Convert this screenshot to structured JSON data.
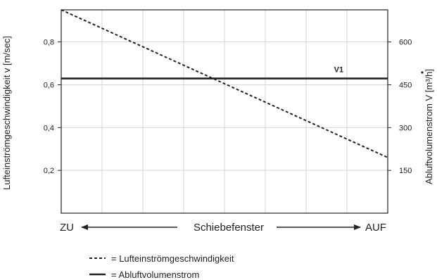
{
  "chart_data": {
    "type": "line",
    "y_left_label": "Lufteinströmgeschwindigkeit    v [m/sec]",
    "y_right_label": "Abluftvolumenstrom   V [m³/h]",
    "y_left_ticks": [
      "0,2",
      "0,4",
      "0,6",
      "0,8"
    ],
    "y_left_tick_values": [
      0.2,
      0.4,
      0.6,
      0.8
    ],
    "y_left_lim": [
      0,
      0.95
    ],
    "y_right_ticks": [
      "150",
      "300",
      "450",
      "600"
    ],
    "y_right_tick_values": [
      150,
      300,
      450,
      600
    ],
    "y_right_lim": [
      0,
      712.5
    ],
    "x_left_label": "ZU",
    "x_center_label": "Schiebefenster",
    "x_right_label": "AUF",
    "x_lim": [
      0,
      1
    ],
    "grid": true,
    "series": [
      {
        "name": "Lufteinströmgeschwindigkeit",
        "axis": "left",
        "style": "dashed",
        "x": [
          0,
          1
        ],
        "y": [
          0.95,
          0.26
        ]
      },
      {
        "name": "Abluftvolumenstrom",
        "axis": "right",
        "style": "solid",
        "label": "V1",
        "x": [
          0,
          1
        ],
        "y": [
          472,
          472
        ]
      }
    ],
    "legend": {
      "position": "bottom-left",
      "entries": [
        {
          "symbol": "dashed",
          "text": "= Lufteinströmgeschwindigkeit"
        },
        {
          "symbol": "solid",
          "text": "= Abluftvolumenstrom"
        }
      ]
    }
  }
}
